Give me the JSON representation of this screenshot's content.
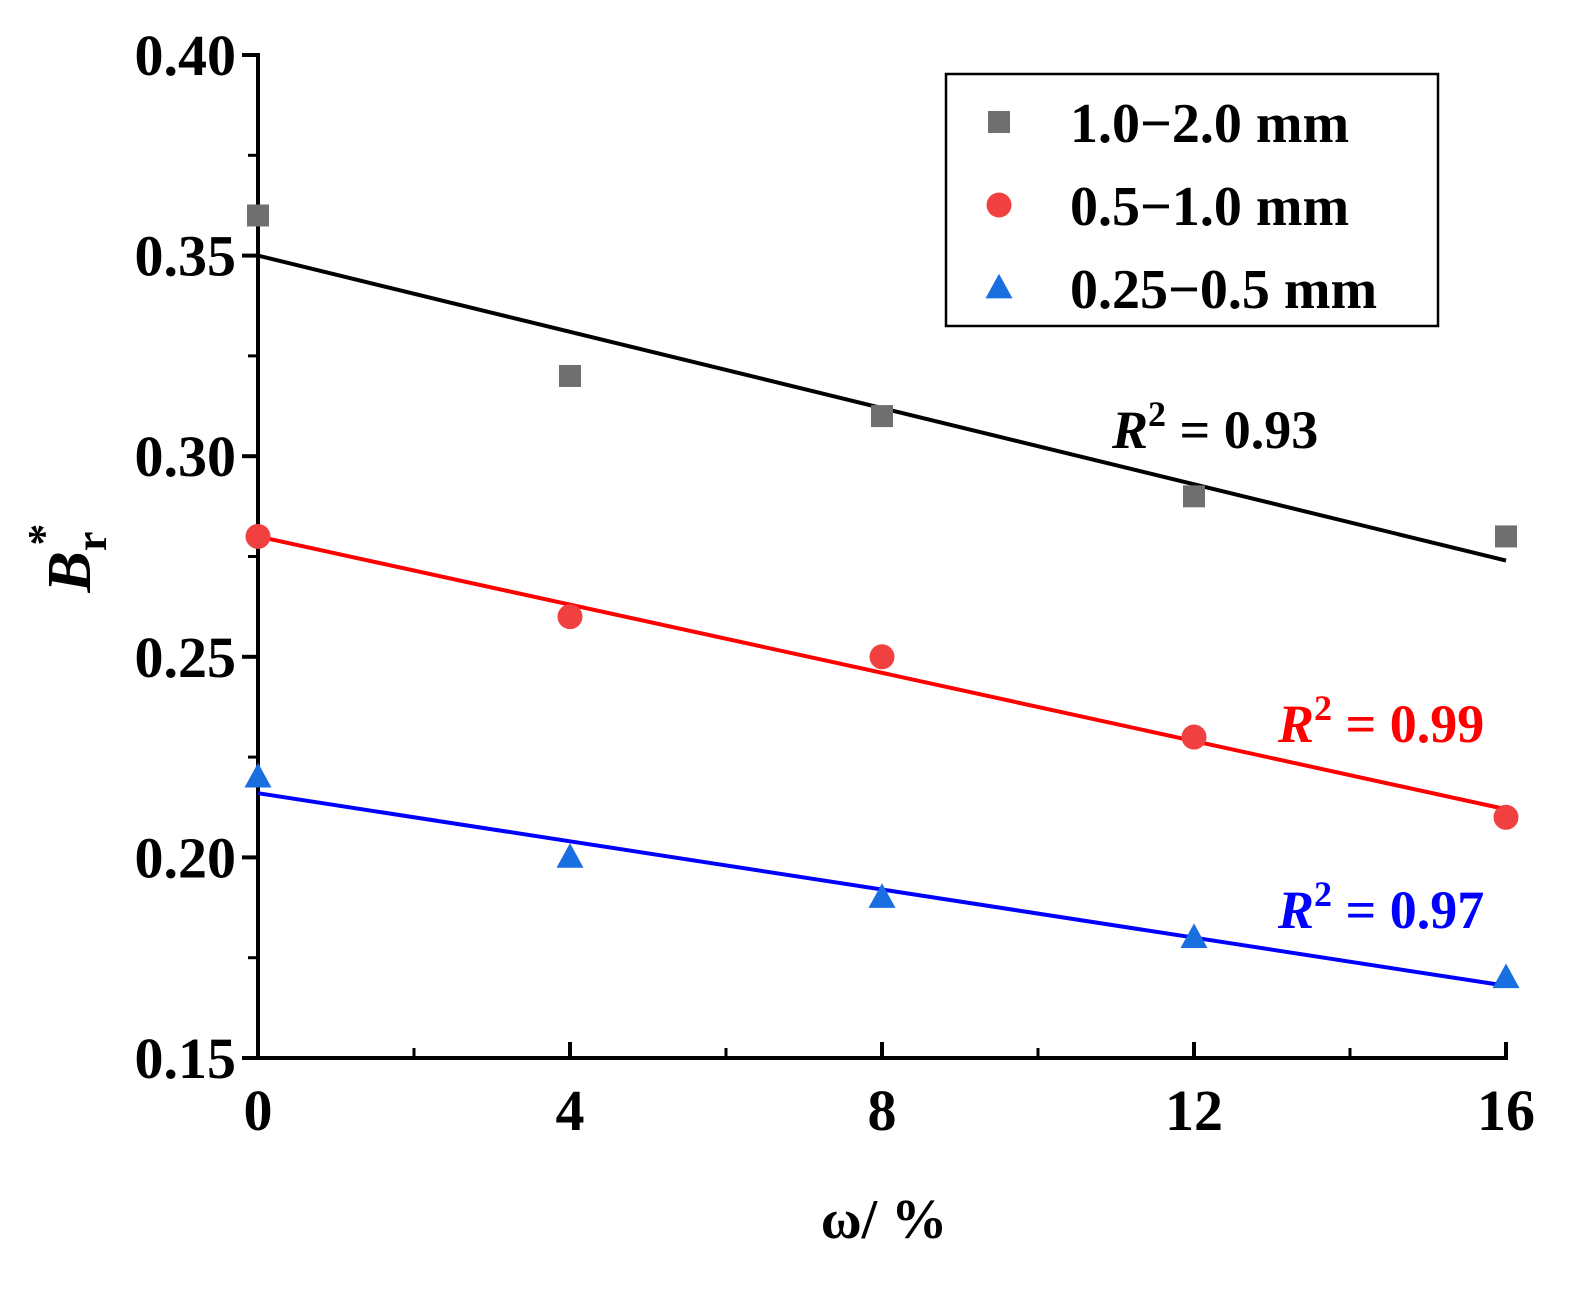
{
  "chart_data": {
    "type": "scatter",
    "title": "",
    "xlabel": "ω/ %",
    "ylabel": {
      "main": "B",
      "sub": "r",
      "sup": "*"
    },
    "xlim": [
      0,
      16
    ],
    "ylim": [
      0.15,
      0.4
    ],
    "x_ticks": [
      0,
      4,
      8,
      12,
      16
    ],
    "x_tick_labels": [
      "0",
      "4",
      "8",
      "12",
      "16"
    ],
    "y_ticks": [
      0.15,
      0.2,
      0.25,
      0.3,
      0.35,
      0.4
    ],
    "y_tick_labels": [
      "0.15",
      "0.20",
      "0.25",
      "0.30",
      "0.35",
      "0.40"
    ],
    "grid": false,
    "legend_position": "top-right",
    "series": [
      {
        "name": "1.0−2.0 mm",
        "marker": "square",
        "color": "#6f6f6f",
        "line_color": "#000000",
        "x": [
          0,
          4,
          8,
          12,
          16
        ],
        "y": [
          0.36,
          0.32,
          0.31,
          0.29,
          0.28
        ],
        "fit": {
          "y_start": 0.35,
          "y_end": 0.274
        },
        "r2_label": {
          "var": "R",
          "sup": "2",
          "value": " = 0.93",
          "color": "#000000"
        }
      },
      {
        "name": "0.5−1.0 mm",
        "marker": "circle",
        "color": "#f04040",
        "line_color": "#ff0000",
        "x": [
          0,
          4,
          8,
          12,
          16
        ],
        "y": [
          0.28,
          0.26,
          0.25,
          0.23,
          0.21
        ],
        "fit": {
          "y_start": 0.28,
          "y_end": 0.212
        },
        "r2_label": {
          "var": "R",
          "sup": "2",
          "value": " = 0.99",
          "color": "#ff0000"
        }
      },
      {
        "name": "0.25−0.5 mm",
        "marker": "triangle",
        "color": "#1a6fe0",
        "line_color": "#0000ff",
        "x": [
          0,
          4,
          8,
          12,
          16
        ],
        "y": [
          0.22,
          0.2,
          0.19,
          0.18,
          0.17
        ],
        "fit": {
          "y_start": 0.216,
          "y_end": 0.168
        },
        "r2_label": {
          "var": "R",
          "sup": "2",
          "value": " = 0.97",
          "color": "#0000ff"
        }
      }
    ]
  }
}
